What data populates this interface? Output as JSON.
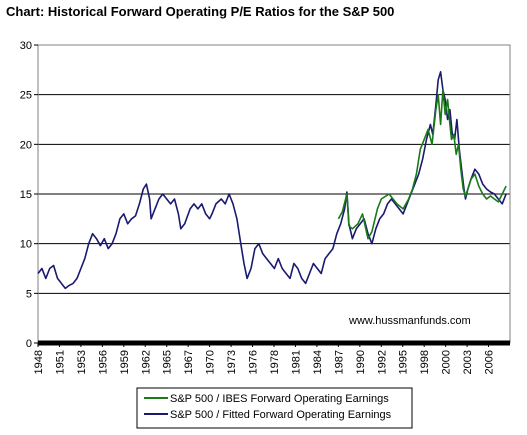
{
  "chart_data": {
    "type": "line",
    "title": "Chart: Historical Forward Operating P/E Ratios for the S&P 500",
    "xlabel": "",
    "ylabel": "",
    "xlim": [
      1948,
      2008.5
    ],
    "ylim": [
      0,
      30
    ],
    "y_ticks": [
      0,
      5,
      10,
      15,
      20,
      25,
      30
    ],
    "x_tick_labels": [
      "1948",
      "1951",
      "1953",
      "1956",
      "1959",
      "1962",
      "1965",
      "1967",
      "1970",
      "1973",
      "1976",
      "1978",
      "1981",
      "1984",
      "1987",
      "1990",
      "1992",
      "1995",
      "1998",
      "2000",
      "2003",
      "2006"
    ],
    "grid": "horizontal",
    "legend_position": "bottom",
    "annotation": "www.hussmanfunds.com",
    "series": [
      {
        "name": "S&P 500 / IBES Forward Operating Earnings",
        "color": "#1a7a1a",
        "x": [
          1986.5,
          1987.0,
          1987.6,
          1987.85,
          1988.3,
          1989.0,
          1989.6,
          1990.3,
          1990.8,
          1991.5,
          1992.0,
          1993.0,
          1994.0,
          1994.8,
          1995.5,
          1996.0,
          1996.5,
          1997.0,
          1997.5,
          1998.0,
          1998.5,
          1999.0,
          1999.3,
          1999.6,
          1999.9,
          2000.2,
          2000.5,
          2000.8,
          2001.0,
          2001.3,
          2001.6,
          2001.9,
          2002.2,
          2002.5,
          2002.8,
          2003.1,
          2003.5,
          2004.0,
          2004.5,
          2005.0,
          2005.5,
          2006.0,
          2006.5,
          2007.0,
          2007.5,
          2008.0
        ],
        "y": [
          12.5,
          13.2,
          15.0,
          11.8,
          11.5,
          12.0,
          13.0,
          10.5,
          11.2,
          13.5,
          14.5,
          15.0,
          14.0,
          13.5,
          14.5,
          15.5,
          17.0,
          19.5,
          20.5,
          21.5,
          20.0,
          23.5,
          25.0,
          22.0,
          25.5,
          23.0,
          24.5,
          22.0,
          20.5,
          21.0,
          19.0,
          20.0,
          17.5,
          15.5,
          14.8,
          15.5,
          16.5,
          17.0,
          15.8,
          15.0,
          14.5,
          14.8,
          14.5,
          14.2,
          15.0,
          15.8
        ]
      },
      {
        "name": "S&P 500 / Fitted Forward Operating Earnings",
        "color": "#1a1a70",
        "x": [
          1948.0,
          1948.5,
          1949.0,
          1949.5,
          1950.0,
          1950.5,
          1951.0,
          1951.5,
          1952.0,
          1952.5,
          1953.0,
          1953.5,
          1954.0,
          1954.5,
          1955.0,
          1955.5,
          1956.0,
          1956.5,
          1957.0,
          1957.5,
          1958.0,
          1958.5,
          1959.0,
          1959.5,
          1960.0,
          1960.5,
          1961.0,
          1961.5,
          1961.9,
          1962.3,
          1962.5,
          1963.0,
          1963.5,
          1964.0,
          1964.5,
          1965.0,
          1965.5,
          1966.0,
          1966.3,
          1966.8,
          1967.5,
          1968.0,
          1968.5,
          1969.0,
          1969.5,
          1970.0,
          1970.3,
          1970.8,
          1971.5,
          1972.0,
          1972.5,
          1973.0,
          1973.5,
          1974.0,
          1974.4,
          1974.8,
          1975.3,
          1975.8,
          1976.3,
          1976.8,
          1977.3,
          1977.8,
          1978.3,
          1978.8,
          1979.3,
          1979.8,
          1980.3,
          1980.8,
          1981.3,
          1981.8,
          1982.3,
          1982.8,
          1983.3,
          1983.8,
          1984.3,
          1984.8,
          1985.3,
          1985.8,
          1986.3,
          1986.8,
          1987.3,
          1987.6,
          1987.85,
          1988.3,
          1988.8,
          1989.3,
          1989.8,
          1990.3,
          1990.8,
          1991.3,
          1991.8,
          1992.3,
          1992.8,
          1993.3,
          1993.8,
          1994.3,
          1994.8,
          1995.3,
          1995.8,
          1996.3,
          1996.8,
          1997.3,
          1997.8,
          1998.3,
          1998.6,
          1999.0,
          1999.3,
          1999.6,
          1999.9,
          2000.2,
          2000.5,
          2000.8,
          2001.1,
          2001.4,
          2001.7,
          2002.0,
          2002.3,
          2002.6,
          2002.8,
          2003.1,
          2003.5,
          2004.0,
          2004.5,
          2005.0,
          2005.5,
          2006.0,
          2006.5,
          2007.0,
          2007.5,
          2008.0
        ],
        "y": [
          7.0,
          7.5,
          6.5,
          7.5,
          7.8,
          6.5,
          6.0,
          5.5,
          5.8,
          6.0,
          6.5,
          7.5,
          8.5,
          10.0,
          11.0,
          10.5,
          9.8,
          10.5,
          9.5,
          10.0,
          11.0,
          12.5,
          13.0,
          12.0,
          12.5,
          12.8,
          14.0,
          15.5,
          16.0,
          14.5,
          12.5,
          13.5,
          14.5,
          15.0,
          14.5,
          14.0,
          14.5,
          13.0,
          11.5,
          12.0,
          13.5,
          14.0,
          13.5,
          14.0,
          13.0,
          12.5,
          13.0,
          14.0,
          14.5,
          14.0,
          15.0,
          14.0,
          12.5,
          10.0,
          8.0,
          6.5,
          7.5,
          9.5,
          10.0,
          9.0,
          8.5,
          8.0,
          7.5,
          8.5,
          7.5,
          7.0,
          6.5,
          8.0,
          7.5,
          6.5,
          6.0,
          7.0,
          8.0,
          7.5,
          7.0,
          8.5,
          9.0,
          9.5,
          11.0,
          12.0,
          13.5,
          15.2,
          12.0,
          10.5,
          11.5,
          12.0,
          12.5,
          11.0,
          10.0,
          11.5,
          12.5,
          13.0,
          14.0,
          14.5,
          14.0,
          13.5,
          13.0,
          14.0,
          15.0,
          16.0,
          17.0,
          18.5,
          20.5,
          22.0,
          21.0,
          24.0,
          26.5,
          27.3,
          25.5,
          24.5,
          22.5,
          23.5,
          21.0,
          20.5,
          22.5,
          19.5,
          17.5,
          15.5,
          14.5,
          15.5,
          16.5,
          17.5,
          17.0,
          16.0,
          15.5,
          15.2,
          15.0,
          14.5,
          14.0,
          15.0
        ]
      }
    ]
  }
}
